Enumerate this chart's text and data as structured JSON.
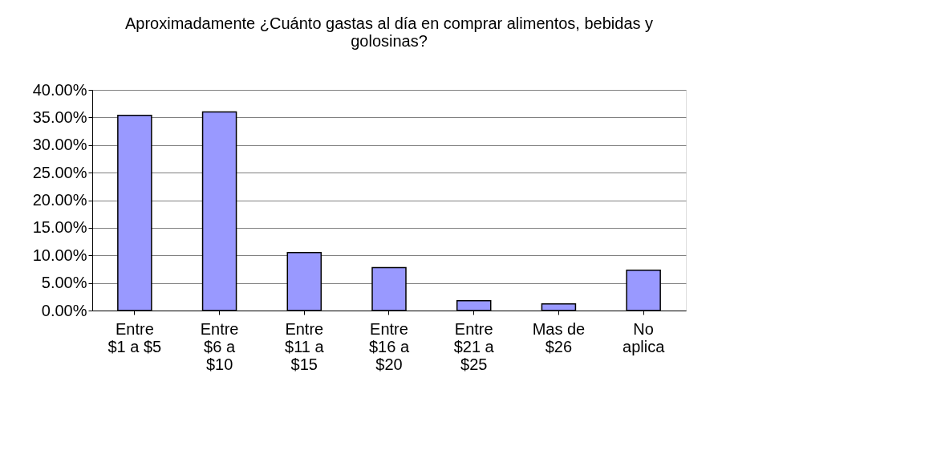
{
  "chart_data": {
    "type": "bar",
    "title": "Aproximadamente ¿Cuánto gastas al día en comprar alimentos, bebidas y golosinas?",
    "categories": [
      "Entre $1 a $5",
      "Entre $6 a $10",
      "Entre $11 a $15",
      "Entre $16 a $20",
      "Entre $21 a $25",
      "Mas de $26",
      "No aplica"
    ],
    "values": [
      35.4,
      36.0,
      10.5,
      7.8,
      1.8,
      1.2,
      7.3
    ],
    "color": "#9999ff",
    "ylim": [
      0,
      40
    ],
    "yticks": [
      {
        "value": 0,
        "label": "0.00%"
      },
      {
        "value": 5,
        "label": "5.00%"
      },
      {
        "value": 10,
        "label": "10.00%"
      },
      {
        "value": 15,
        "label": "15.00%"
      },
      {
        "value": 20,
        "label": "20.00%"
      },
      {
        "value": 25,
        "label": "25.00%"
      },
      {
        "value": 30,
        "label": "30.00%"
      },
      {
        "value": 35,
        "label": "35.00%"
      },
      {
        "value": 40,
        "label": "40.00%"
      }
    ],
    "grid": "y"
  }
}
